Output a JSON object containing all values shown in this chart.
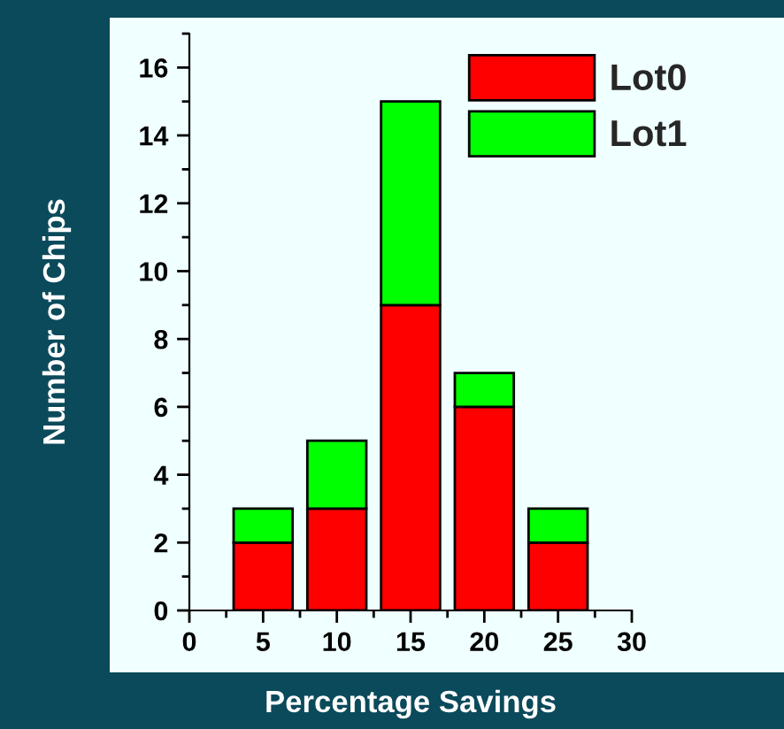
{
  "chart_data": {
    "type": "bar",
    "stacked": true,
    "x": [
      5,
      10,
      15,
      20,
      25
    ],
    "series": [
      {
        "name": "Lot0",
        "color": "#ff0000",
        "values": [
          2,
          3,
          9,
          6,
          2
        ]
      },
      {
        "name": "Lot1",
        "color": "#00ff00",
        "values": [
          1,
          2,
          6,
          1,
          1
        ]
      }
    ],
    "xlabel": "Percentage Savings",
    "ylabel": "Number of Chips",
    "xlim": [
      0,
      30
    ],
    "xticks": [
      0,
      5,
      10,
      15,
      20,
      25,
      30
    ],
    "ylim": [
      0,
      17
    ],
    "yticks": [
      0,
      2,
      4,
      6,
      8,
      10,
      12,
      14,
      16
    ],
    "grid": false,
    "legend": "top right"
  }
}
